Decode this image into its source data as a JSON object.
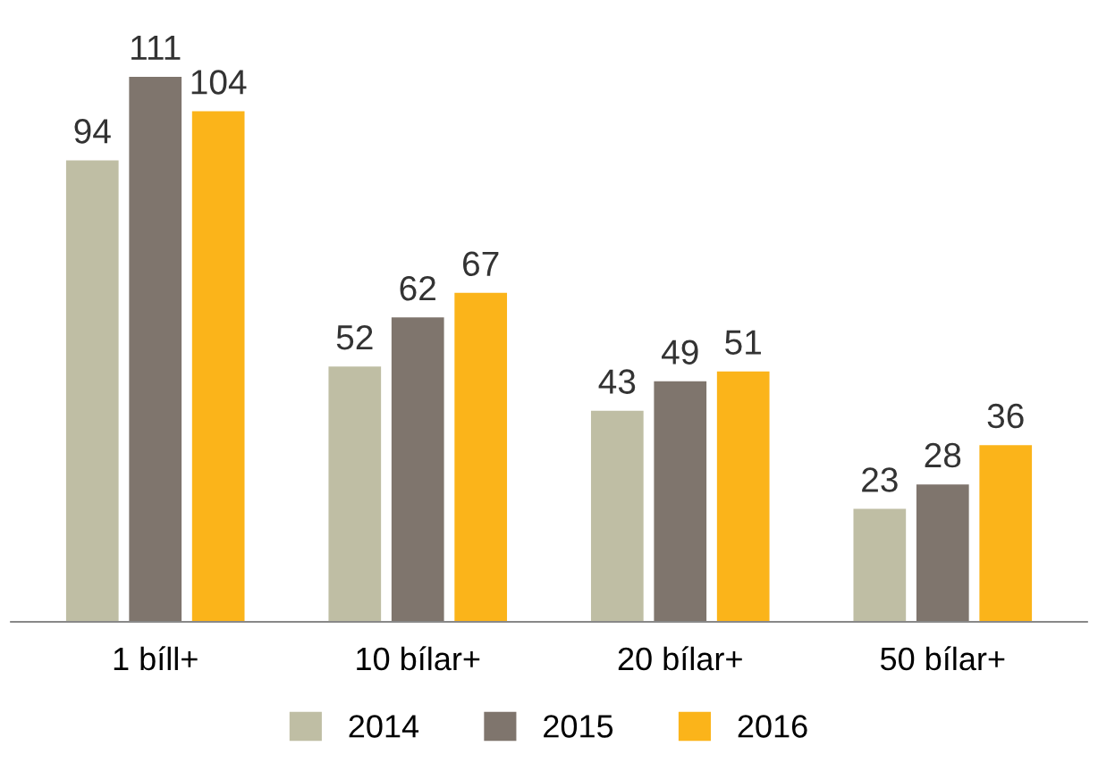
{
  "chart_data": {
    "type": "bar",
    "categories": [
      "1 bíll+",
      "10 bílar+",
      "20 bílar+",
      "50 bílar+"
    ],
    "series": [
      {
        "name": "2014",
        "color": "#bfbea4",
        "values": [
          94,
          52,
          43,
          23
        ]
      },
      {
        "name": "2015",
        "color": "#7f756d",
        "values": [
          111,
          62,
          49,
          28
        ]
      },
      {
        "name": "2016",
        "color": "#fbb41a",
        "values": [
          104,
          67,
          51,
          36
        ]
      }
    ],
    "data_labels": true,
    "legend": "bottom",
    "grid": false,
    "tick_labels": "x"
  }
}
